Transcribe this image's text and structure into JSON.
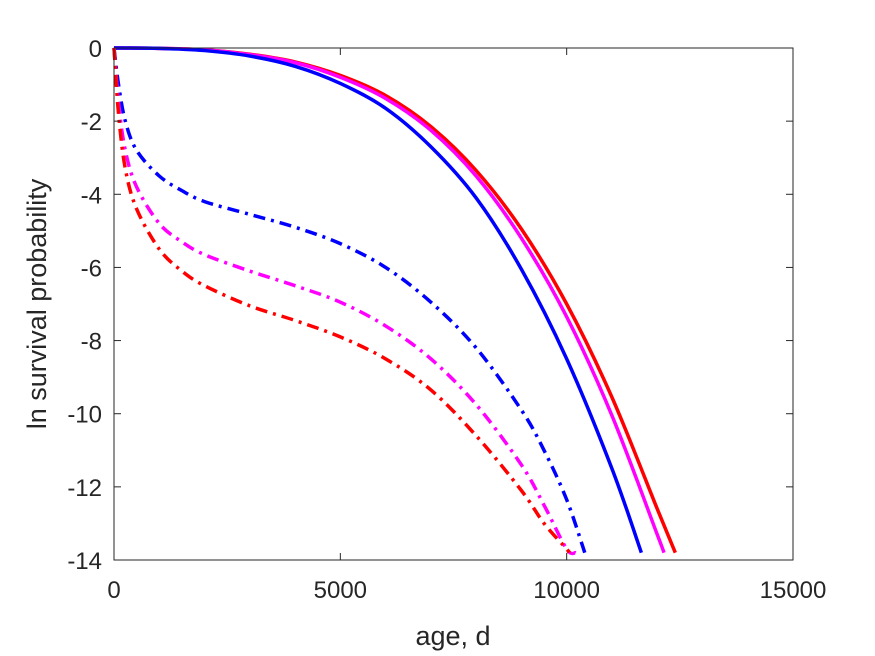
{
  "chart_data": {
    "type": "line",
    "title": "",
    "xlabel": "age, d",
    "ylabel": "ln survival probability",
    "xlim": [
      0,
      15000
    ],
    "ylim": [
      -14,
      0
    ],
    "xticks": [
      0,
      5000,
      10000,
      15000
    ],
    "yticks": [
      0,
      -2,
      -4,
      -6,
      -8,
      -10,
      -12,
      -14
    ],
    "grid": false,
    "legend": "none",
    "series": [
      {
        "color": "#ff0000",
        "style": "solid",
        "x": [
          0,
          1000,
          2000,
          3000,
          4000,
          5000,
          6000,
          7000,
          8000,
          9000,
          10000,
          11000,
          12000,
          12400
        ],
        "y": [
          0,
          -0.01,
          -0.05,
          -0.17,
          -0.38,
          -0.75,
          -1.3,
          -2.15,
          -3.35,
          -4.95,
          -7.0,
          -9.55,
          -12.6,
          -13.8
        ]
      },
      {
        "color": "#ff00ff",
        "style": "solid",
        "x": [
          0,
          1000,
          2000,
          3000,
          4000,
          5000,
          6000,
          7000,
          8000,
          9000,
          10000,
          11000,
          12000,
          12150
        ],
        "y": [
          0,
          -0.01,
          -0.05,
          -0.18,
          -0.4,
          -0.8,
          -1.38,
          -2.25,
          -3.5,
          -5.2,
          -7.35,
          -10.05,
          -13.3,
          -13.8
        ]
      },
      {
        "color": "#0000ff",
        "style": "solid",
        "x": [
          0,
          1000,
          2000,
          3000,
          4000,
          5000,
          6000,
          7000,
          8000,
          9000,
          10000,
          11000,
          11650
        ],
        "y": [
          0,
          -0.01,
          -0.07,
          -0.22,
          -0.5,
          -0.97,
          -1.65,
          -2.7,
          -4.1,
          -6.05,
          -8.5,
          -11.5,
          -13.8
        ]
      },
      {
        "color": "#0000ff",
        "style": "dashdot",
        "x": [
          0,
          100,
          250,
          500,
          1000,
          1500,
          2000,
          3000,
          4000,
          5000,
          6000,
          7000,
          8000,
          9000,
          9500,
          10000,
          10400
        ],
        "y": [
          0,
          -1.0,
          -2.0,
          -2.8,
          -3.5,
          -3.9,
          -4.2,
          -4.55,
          -4.9,
          -5.35,
          -6.0,
          -6.95,
          -8.2,
          -9.9,
          -11.0,
          -12.35,
          -13.8
        ]
      },
      {
        "color": "#ff00ff",
        "style": "dashdot",
        "x": [
          0,
          100,
          250,
          500,
          1000,
          1500,
          2000,
          3000,
          4000,
          5000,
          6000,
          7000,
          8000,
          9000,
          9500,
          10000,
          10200
        ],
        "y": [
          0,
          -1.5,
          -2.8,
          -3.8,
          -4.8,
          -5.3,
          -5.65,
          -6.1,
          -6.5,
          -6.95,
          -7.6,
          -8.5,
          -9.75,
          -11.4,
          -12.5,
          -13.7,
          -13.8
        ]
      },
      {
        "color": "#ff0000",
        "style": "dashdot",
        "x": [
          0,
          100,
          250,
          500,
          1000,
          1500,
          2000,
          3000,
          4000,
          5000,
          6000,
          7000,
          8000,
          9000,
          9500,
          10000,
          10050
        ],
        "y": [
          0,
          -1.8,
          -3.3,
          -4.4,
          -5.5,
          -6.1,
          -6.5,
          -7.05,
          -7.45,
          -7.9,
          -8.5,
          -9.35,
          -10.6,
          -12.1,
          -13.0,
          -13.7,
          -13.8
        ]
      }
    ]
  }
}
